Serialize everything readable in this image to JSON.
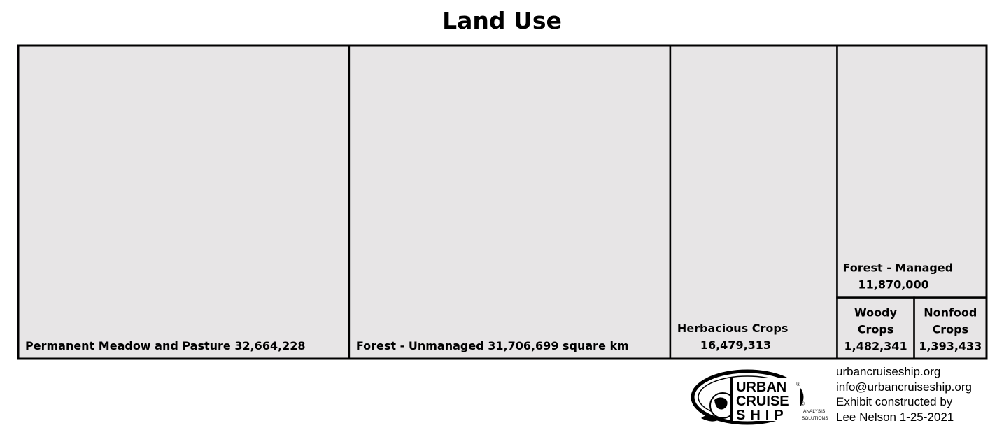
{
  "chart_data": {
    "type": "treemap",
    "title": "Land Use",
    "unit": "square km",
    "items": [
      {
        "name": "Permanent Meadow and Pasture",
        "value": 32664228,
        "value_label": "32,664,228"
      },
      {
        "name": "Forest - Unmanaged",
        "value": 31706699,
        "value_label": "31,706,699"
      },
      {
        "name": "Herbacious Crops",
        "value": 16479313,
        "value_label": "16,479,313"
      },
      {
        "name": "Forest - Managed",
        "value": 11870000,
        "value_label": "11,870,000"
      },
      {
        "name": "Woody Crops",
        "value": 1482341,
        "value_label": "1,482,341"
      },
      {
        "name": "Nonfood Crops",
        "value": 1393433,
        "value_label": "1,393,433"
      }
    ],
    "colors": {
      "tile_fill": "#e7e5e6",
      "border": "#000000"
    }
  },
  "footer": {
    "logo_lines": [
      "URBAN",
      "CRUISE",
      "SHIP"
    ],
    "logo_subtext": [
      "ANALYSIS",
      "SOLUTIONS"
    ],
    "logo_mark": "®",
    "logo_copyright": "©",
    "lines": [
      "urbancruiseship.org",
      "info@urbancruiseship.org",
      "Exhibit constructed by",
      "Lee Nelson 1-25-2021"
    ]
  }
}
